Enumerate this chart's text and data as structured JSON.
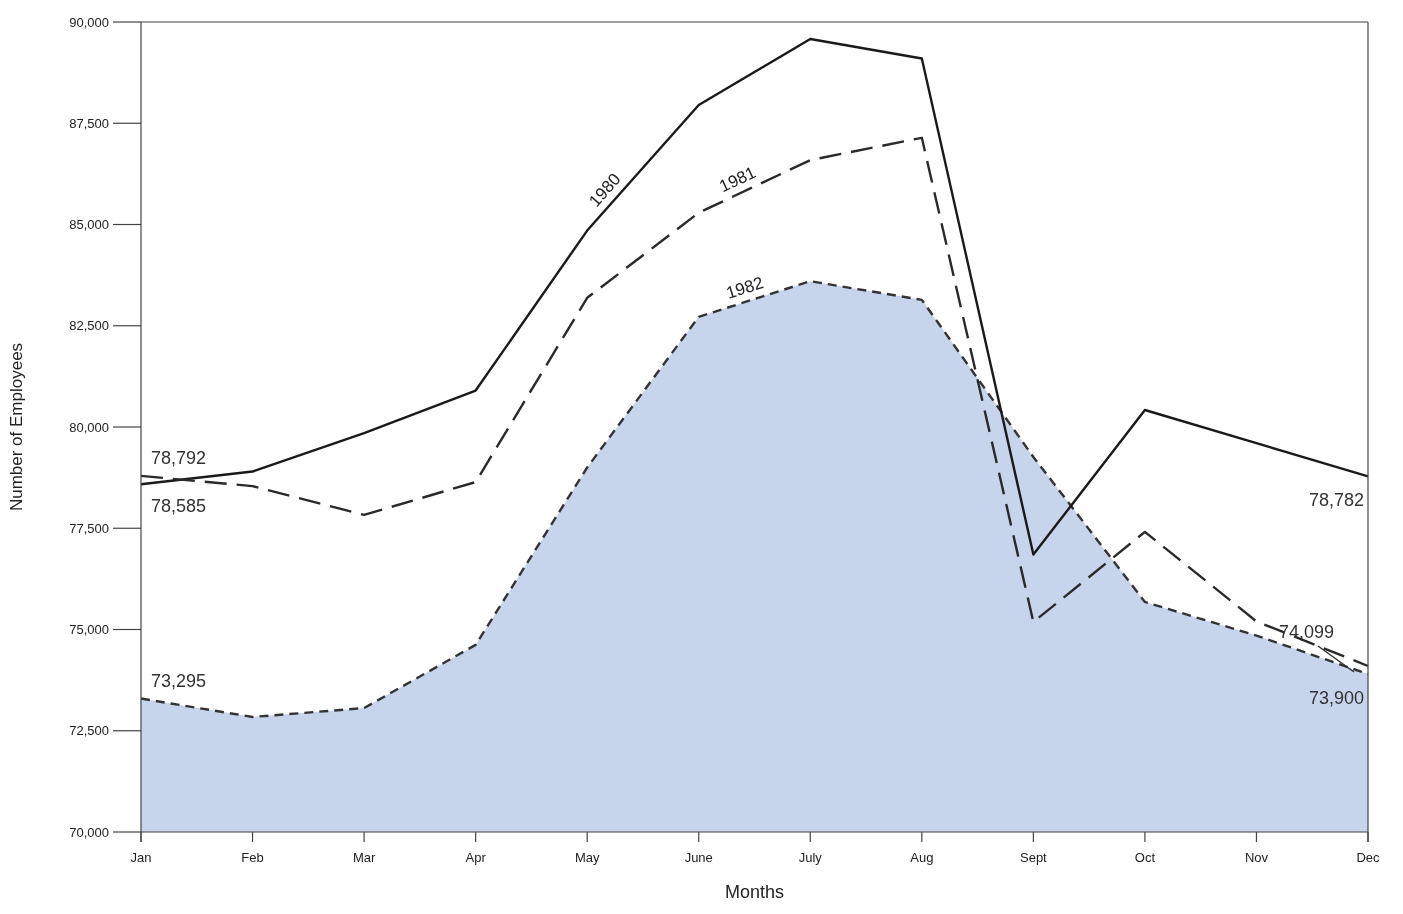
{
  "chart_data": {
    "type": "line",
    "xlabel": "Months",
    "ylabel": "Number of Employees",
    "categories": [
      "Jan",
      "Feb",
      "Mar",
      "Apr",
      "May",
      "June",
      "July",
      "Aug",
      "Sept",
      "Oct",
      "Nov",
      "Dec"
    ],
    "series": [
      {
        "name": "1980",
        "color": "#1a1a1a",
        "line_style": "solid",
        "values": [
          78585,
          78900,
          79850,
          80900,
          84850,
          87950,
          89580,
          89100,
          76850,
          80420,
          79600,
          78782
        ]
      },
      {
        "name": "1981",
        "color": "#2a2a2a",
        "line_style": "dashed",
        "values": [
          78792,
          78540,
          77830,
          78640,
          83190,
          85290,
          86590,
          87140,
          75185,
          77410,
          75200,
          74099
        ]
      },
      {
        "name": "1982",
        "type": "area",
        "color": "#c6d5ec",
        "line_style": "dashed",
        "values": [
          73295,
          72840,
          73060,
          74620,
          79000,
          82720,
          83600,
          83140,
          79260,
          75680,
          74850,
          73900
        ]
      }
    ],
    "ylim": [
      70000,
      90000
    ],
    "yticks": [
      {
        "value": 70000,
        "label": "70,000"
      },
      {
        "value": 72500,
        "label": "72,500"
      },
      {
        "value": 75000,
        "label": "75,000"
      },
      {
        "value": 77500,
        "label": "77,500"
      },
      {
        "value": 80000,
        "label": "80,000"
      },
      {
        "value": 82500,
        "label": "82,500"
      },
      {
        "value": 85000,
        "label": "85,000"
      },
      {
        "value": 87500,
        "label": "87,500"
      },
      {
        "value": 90000,
        "label": "90,000"
      }
    ],
    "annotations": [
      {
        "text": "78,792",
        "x": "Jan",
        "y": 78792
      },
      {
        "text": "78,585",
        "x": "Jan",
        "y": 78585
      },
      {
        "text": "73,295",
        "x": "Jan",
        "y": 73295
      },
      {
        "text": "78,782",
        "x": "Dec",
        "y": 78782
      },
      {
        "text": "74,099",
        "x": "Dec",
        "y": 74099
      },
      {
        "text": "73,900",
        "x": "Dec",
        "y": 73900
      }
    ],
    "grid": false,
    "marker": "none"
  }
}
